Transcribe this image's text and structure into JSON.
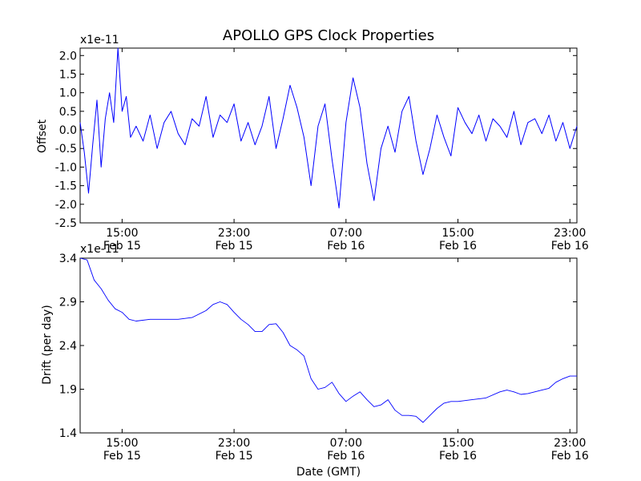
{
  "title": "APOLLO GPS Clock Properties",
  "xlabel": "Date (GMT)",
  "line_color": "#0000ff",
  "chart_data": [
    {
      "type": "line",
      "ylabel": "Offset",
      "scale_label": "x1e-11",
      "ylim": [
        -2.5,
        2.2
      ],
      "yticks": [
        2.0,
        1.5,
        1.0,
        0.5,
        0.0,
        -0.5,
        -1.0,
        -1.5,
        -2.0,
        -2.5
      ],
      "ytick_labels": [
        "2.0",
        "1.5",
        "1.0",
        "0.5",
        "0.0",
        "-0.5",
        "-1.0",
        "-1.5",
        "-2.0",
        "-2.5"
      ],
      "xlim_hours": [
        12.0,
        47.5
      ],
      "xticks_hours": [
        15,
        23,
        31,
        39,
        47
      ],
      "xtick_labels": [
        [
          "15:00",
          "Feb 15"
        ],
        [
          "23:00",
          "Feb 15"
        ],
        [
          "07:00",
          "Feb 16"
        ],
        [
          "15:00",
          "Feb 16"
        ],
        [
          "23:00",
          "Feb 16"
        ]
      ],
      "series": [
        {
          "name": "offset",
          "x_hours": [
            12.0,
            12.3,
            12.6,
            12.9,
            13.2,
            13.5,
            13.8,
            14.1,
            14.4,
            14.7,
            15.0,
            15.3,
            15.6,
            16.0,
            16.5,
            17.0,
            17.5,
            18.0,
            18.5,
            19.0,
            19.5,
            20.0,
            20.5,
            21.0,
            21.5,
            22.0,
            22.5,
            23.0,
            23.5,
            24.0,
            24.5,
            25.0,
            25.5,
            26.0,
            26.5,
            27.0,
            27.5,
            28.0,
            28.5,
            29.0,
            29.5,
            30.0,
            30.5,
            31.0,
            31.5,
            32.0,
            32.5,
            33.0,
            33.5,
            34.0,
            34.5,
            35.0,
            35.5,
            36.0,
            36.5,
            37.0,
            37.5,
            38.0,
            38.5,
            39.0,
            39.5,
            40.0,
            40.5,
            41.0,
            41.5,
            42.0,
            42.5,
            43.0,
            43.5,
            44.0,
            44.5,
            45.0,
            45.5,
            46.0,
            46.5,
            47.0,
            47.5
          ],
          "y": [
            0.2,
            -0.6,
            -1.7,
            -0.4,
            0.8,
            -1.0,
            0.3,
            1.0,
            0.2,
            2.2,
            0.5,
            0.9,
            -0.2,
            0.1,
            -0.3,
            0.4,
            -0.5,
            0.2,
            0.5,
            -0.1,
            -0.4,
            0.3,
            0.1,
            0.9,
            -0.2,
            0.4,
            0.2,
            0.7,
            -0.3,
            0.2,
            -0.4,
            0.1,
            0.9,
            -0.5,
            0.3,
            1.2,
            0.6,
            -0.2,
            -1.5,
            0.1,
            0.7,
            -0.8,
            -2.1,
            0.2,
            1.4,
            0.6,
            -0.9,
            -1.9,
            -0.5,
            0.1,
            -0.6,
            0.5,
            0.9,
            -0.3,
            -1.2,
            -0.5,
            0.4,
            -0.2,
            -0.7,
            0.6,
            0.2,
            -0.1,
            0.4,
            -0.3,
            0.3,
            0.1,
            -0.2,
            0.5,
            -0.4,
            0.2,
            0.3,
            -0.1,
            0.4,
            -0.3,
            0.2,
            -0.5,
            0.1
          ]
        }
      ]
    },
    {
      "type": "line",
      "ylabel": "Drift (per day)",
      "scale_label": "x1e-11",
      "ylim": [
        1.4,
        3.4
      ],
      "yticks": [
        3.4,
        2.9,
        2.4,
        1.9,
        1.4
      ],
      "ytick_labels": [
        "3.4",
        "2.9",
        "2.4",
        "1.9",
        "1.4"
      ],
      "xlim_hours": [
        12.0,
        47.5
      ],
      "xticks_hours": [
        15,
        23,
        31,
        39,
        47
      ],
      "xtick_labels": [
        [
          "15:00",
          "Feb 15"
        ],
        [
          "23:00",
          "Feb 15"
        ],
        [
          "07:00",
          "Feb 16"
        ],
        [
          "15:00",
          "Feb 16"
        ],
        [
          "23:00",
          "Feb 16"
        ]
      ],
      "series": [
        {
          "name": "drift",
          "x_hours": [
            12.0,
            12.5,
            13.0,
            13.5,
            14.0,
            14.5,
            15.0,
            15.5,
            16.0,
            17.0,
            18.0,
            19.0,
            20.0,
            21.0,
            21.5,
            22.0,
            22.5,
            23.0,
            23.5,
            24.0,
            24.5,
            25.0,
            25.5,
            26.0,
            26.5,
            27.0,
            27.5,
            28.0,
            28.5,
            29.0,
            29.5,
            30.0,
            30.5,
            31.0,
            31.5,
            32.0,
            32.5,
            33.0,
            33.5,
            34.0,
            34.5,
            35.0,
            35.5,
            36.0,
            36.5,
            37.0,
            37.5,
            38.0,
            38.5,
            39.0,
            40.0,
            41.0,
            42.0,
            42.5,
            43.0,
            43.5,
            44.0,
            45.0,
            45.5,
            46.0,
            46.5,
            47.0,
            47.5
          ],
          "y": [
            3.4,
            3.38,
            3.15,
            3.05,
            2.92,
            2.82,
            2.78,
            2.7,
            2.68,
            2.7,
            2.7,
            2.7,
            2.72,
            2.8,
            2.87,
            2.9,
            2.87,
            2.78,
            2.7,
            2.64,
            2.56,
            2.56,
            2.64,
            2.65,
            2.55,
            2.4,
            2.35,
            2.28,
            2.02,
            1.9,
            1.92,
            1.98,
            1.85,
            1.76,
            1.82,
            1.87,
            1.78,
            1.7,
            1.72,
            1.78,
            1.66,
            1.6,
            1.6,
            1.59,
            1.52,
            1.6,
            1.68,
            1.74,
            1.76,
            1.76,
            1.78,
            1.8,
            1.87,
            1.89,
            1.87,
            1.84,
            1.85,
            1.89,
            1.91,
            1.98,
            2.02,
            2.05,
            2.05
          ]
        }
      ]
    }
  ]
}
